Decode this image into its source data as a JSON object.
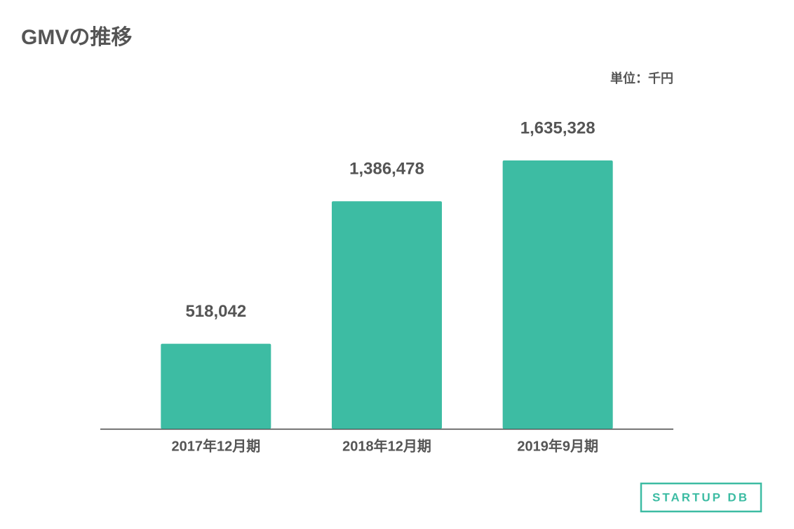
{
  "chart_data": {
    "type": "bar",
    "title": "GMVの推移",
    "unit_label": "単位：千円",
    "categories": [
      "2017年12月期",
      "2018年12月期",
      "2019年9月期"
    ],
    "values": [
      518042,
      1386478,
      1635328
    ],
    "value_labels": [
      "518,042",
      "1,386,478",
      "1,635,328"
    ],
    "color": "#3dbca3"
  },
  "logo": "STARTUP DB"
}
